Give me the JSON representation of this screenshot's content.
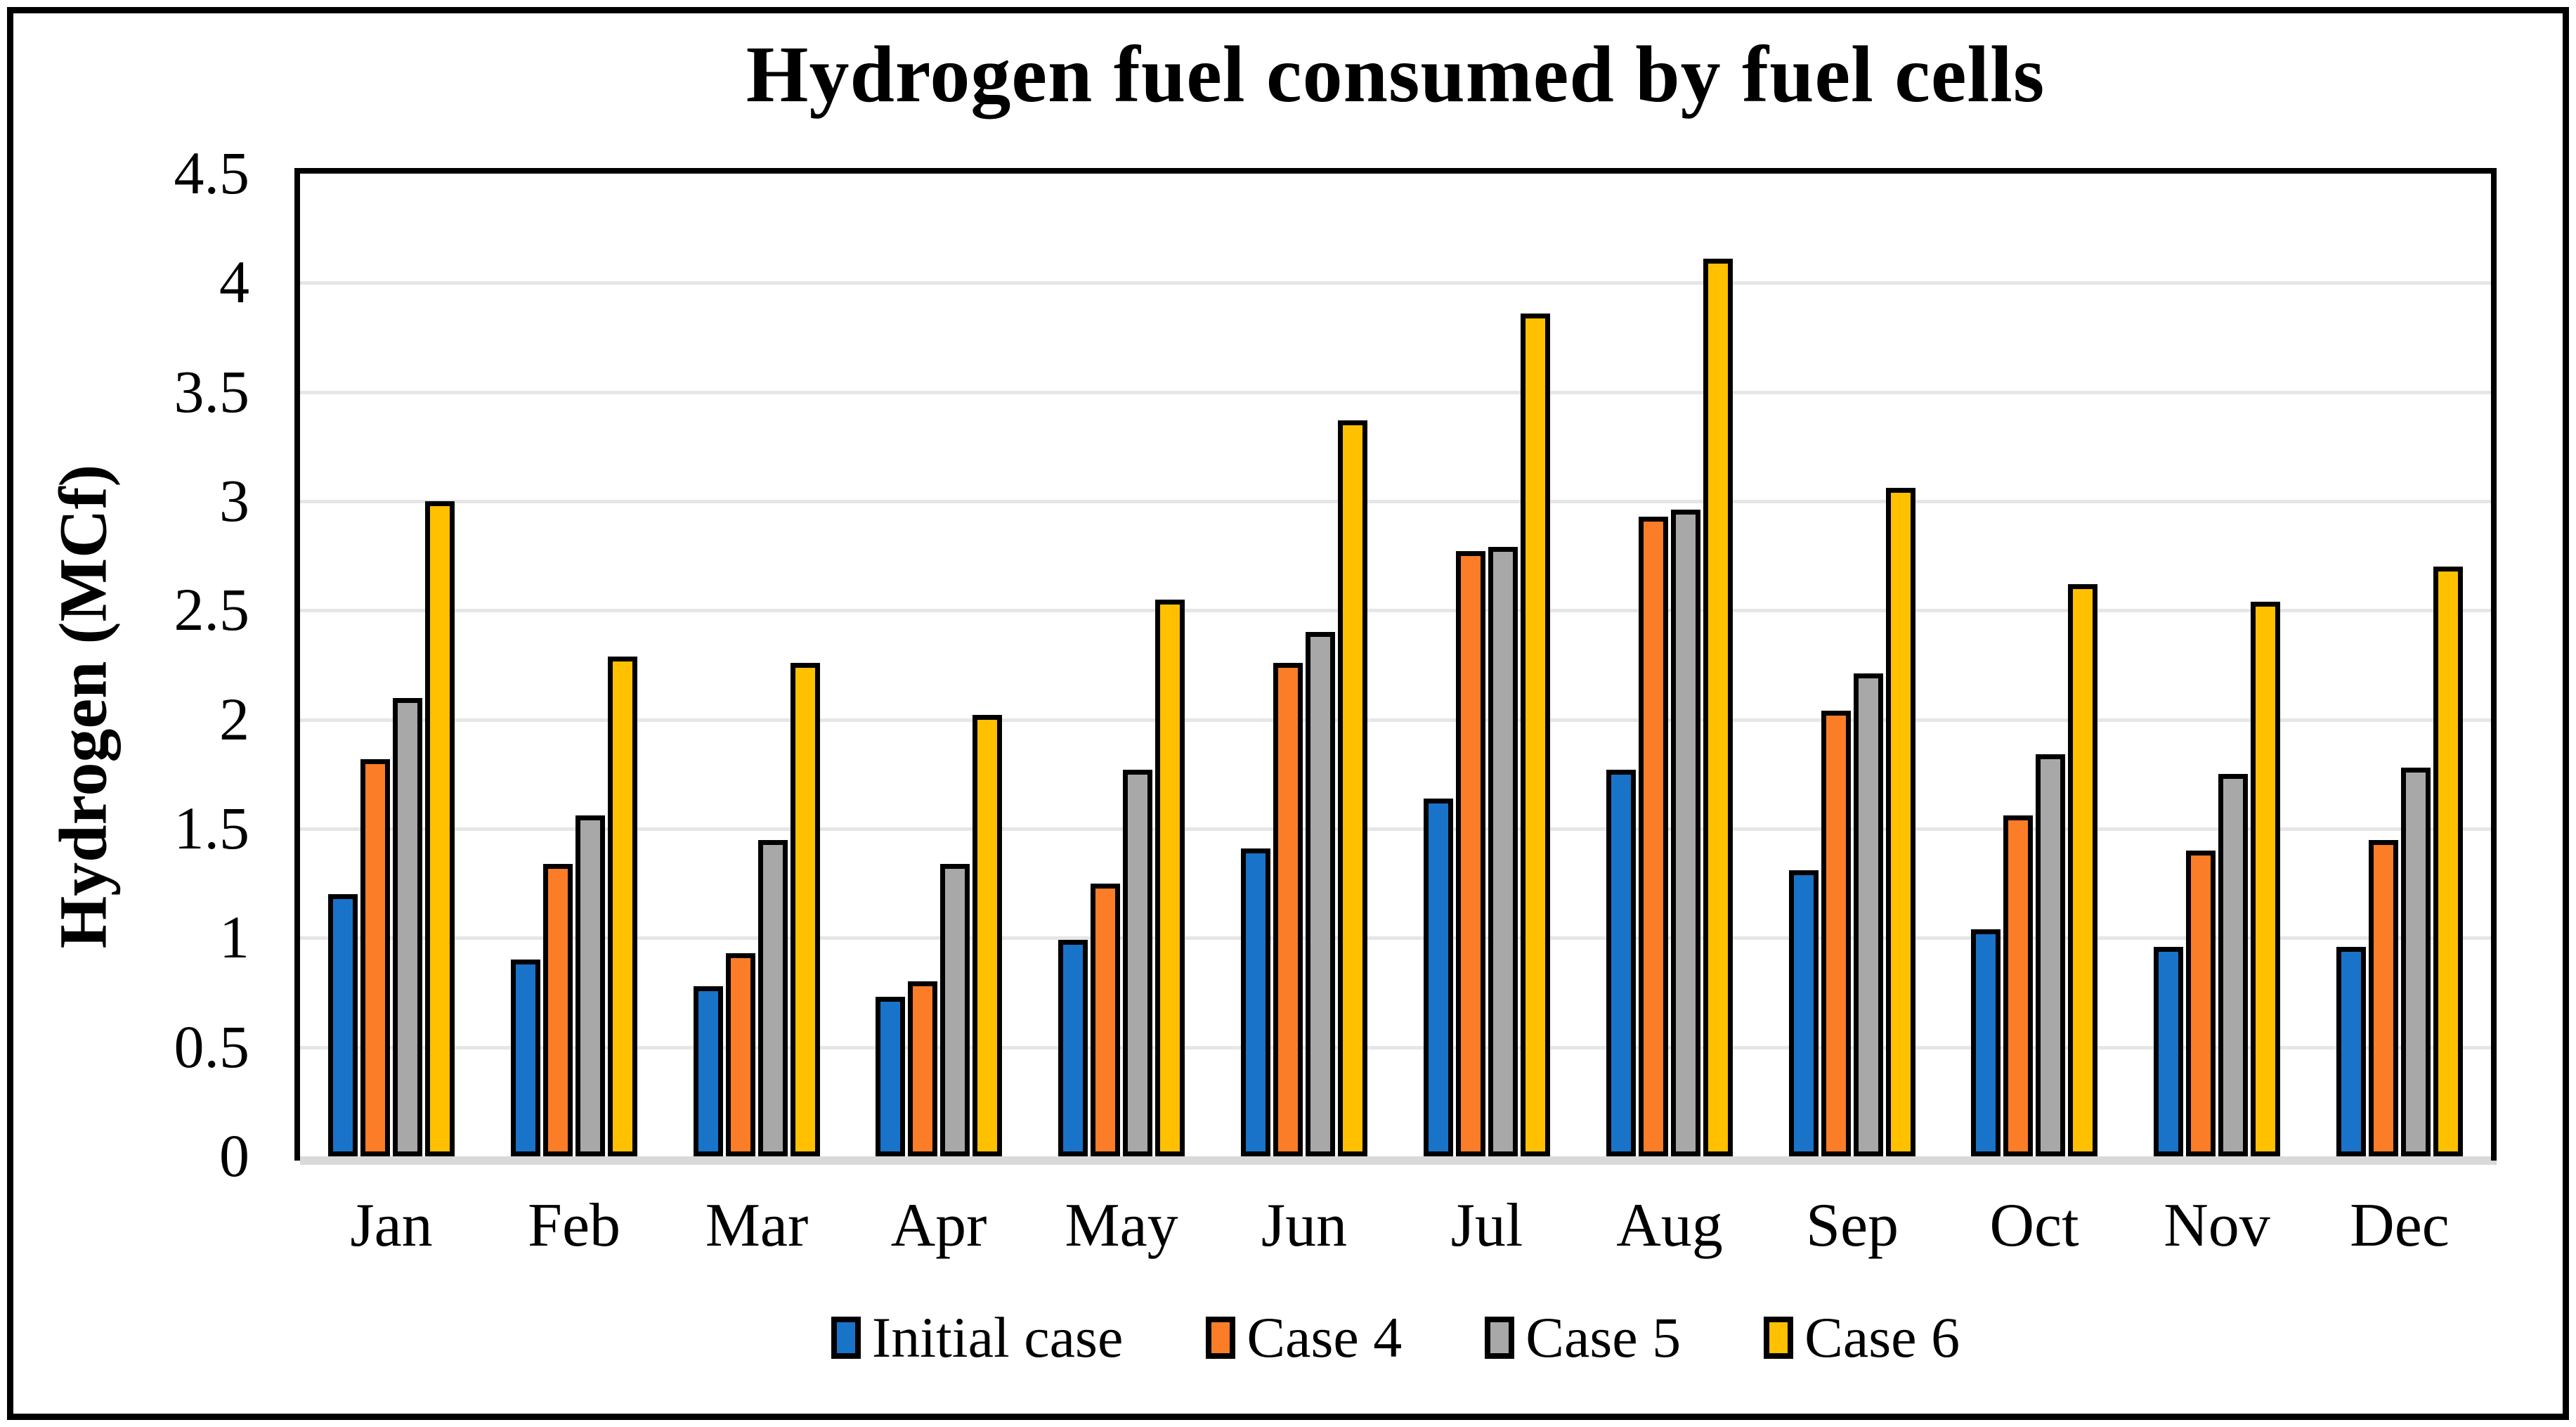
{
  "window": {
    "background": "#ffffff",
    "border_color": "#000000"
  },
  "chart_data": {
    "type": "bar",
    "title": "Hydrogen fuel consumed by fuel cells",
    "xlabel": "",
    "ylabel": "Hydrogen  (MCf)",
    "ylim": [
      0,
      4.5
    ],
    "ytick_step": 0.5,
    "ytick_labels": [
      "0",
      "0.5",
      "1",
      "1.5",
      "2",
      "2.5",
      "3",
      "3.5",
      "4",
      "4.5"
    ],
    "grid": "horizontal",
    "gridline_color": "#E6E6E6",
    "baseline_color": "#D9D9D9",
    "legend_position": "bottom",
    "categories": [
      "Jan",
      "Feb",
      "Mar",
      "Apr",
      "May",
      "Jun",
      "Jul",
      "Aug",
      "Sep",
      "Oct",
      "Nov",
      "Dec"
    ],
    "series": [
      {
        "name": "Initial case",
        "color": "#1973C8",
        "values": [
          1.2,
          0.9,
          0.78,
          0.73,
          0.99,
          1.41,
          1.64,
          1.77,
          1.31,
          1.04,
          0.96,
          0.96
        ]
      },
      {
        "name": "Case 4",
        "color": "#FB7D28",
        "values": [
          1.82,
          1.34,
          0.93,
          0.8,
          1.25,
          2.26,
          2.77,
          2.93,
          2.04,
          1.56,
          1.4,
          1.45
        ]
      },
      {
        "name": "Case 5",
        "color": "#A8A8A8",
        "values": [
          2.1,
          1.56,
          1.45,
          1.34,
          1.77,
          2.4,
          2.79,
          2.96,
          2.21,
          1.84,
          1.75,
          1.78
        ]
      },
      {
        "name": "Case 6",
        "color": "#FFC000",
        "values": [
          3.0,
          2.29,
          2.26,
          2.02,
          2.55,
          3.37,
          3.86,
          4.11,
          3.06,
          2.62,
          2.54,
          2.7
        ]
      }
    ]
  }
}
